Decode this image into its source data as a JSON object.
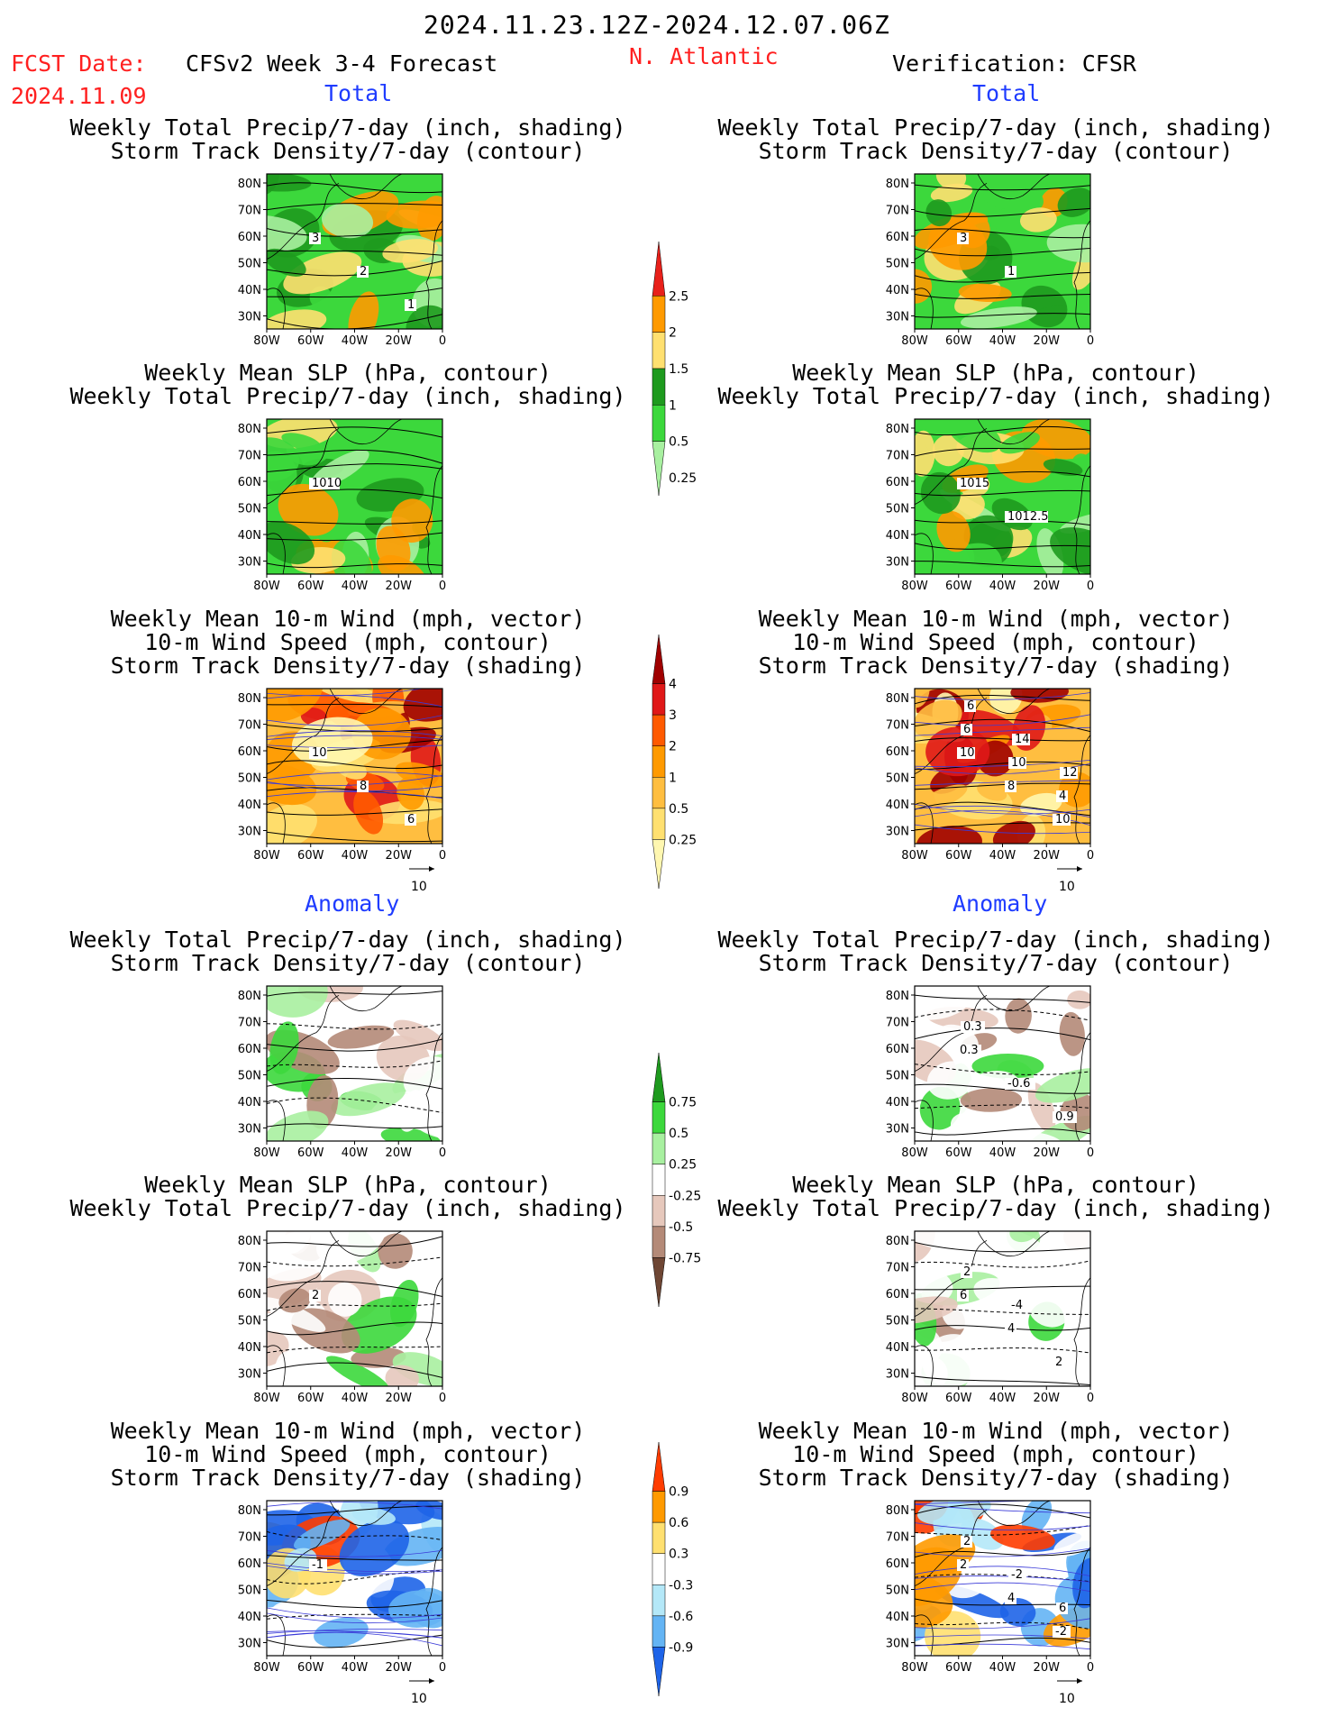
{
  "header": {
    "date_range": "2024.11.23.12Z-2024.12.07.06Z",
    "fcst_label": "FCST Date:",
    "fcst_date": "2024.11.09",
    "forecast_title": "CFSv2 Week 3-4 Forecast",
    "region": "N. Atlantic",
    "verification": "Verification: CFSR"
  },
  "sections": {
    "total": "Total",
    "anomaly": "Anomaly"
  },
  "titles": {
    "precip_shade": "Weekly Total Precip/7-day (inch, shading)",
    "storm_contour": "Storm Track Density/7-day (contour)",
    "slp_contour": "Weekly Mean SLP (hPa, contour)",
    "wind_vector": "Weekly Mean 10-m Wind (mph, vector)",
    "wind_speed": "10-m Wind Speed (mph, contour)",
    "storm_shade": "Storm Track Density/7-day (shading)"
  },
  "axes": {
    "lon_ticks": [
      "80W",
      "60W",
      "40W",
      "20W",
      "0"
    ],
    "lat_ticks": [
      "80N",
      "70N",
      "60N",
      "50N",
      "40N",
      "30N"
    ]
  },
  "vector_ref": "10",
  "colorbars": [
    {
      "id": "precip-total",
      "labels": [
        "2.5",
        "2",
        "1.5",
        "1",
        "0.5",
        "0.25"
      ],
      "colors": [
        "#e8201a",
        "#ff9a00",
        "#ffe070",
        "#1e9a1e",
        "#3cd83c",
        "#a8f0a0"
      ]
    },
    {
      "id": "storm-total",
      "labels": [
        "4",
        "3",
        "2",
        "1",
        "0.5",
        "0.25"
      ],
      "colors": [
        "#a00000",
        "#e01818",
        "#ff5a00",
        "#ff9a00",
        "#ffbe40",
        "#ffe070",
        "#fff7b0"
      ]
    },
    {
      "id": "precip-anom",
      "labels": [
        "0.75",
        "0.5",
        "0.25",
        "-0.25",
        "-0.5",
        "-0.75"
      ],
      "colors": [
        "#1e9a1e",
        "#3cd83c",
        "#a8f0a0",
        "#ffffff",
        "#e6c8bc",
        "#b48a78",
        "#6e4634"
      ]
    },
    {
      "id": "storm-anom",
      "labels": [
        "0.9",
        "0.6",
        "0.3",
        "-0.3",
        "-0.6",
        "-0.9"
      ],
      "colors": [
        "#ff3c00",
        "#ff9a00",
        "#ffe070",
        "#ffffff",
        "#b4e8f8",
        "#64b4f4",
        "#1e64e8"
      ]
    }
  ],
  "panels": [
    {
      "id": "fc-total-precip",
      "kind": "precip",
      "labels": [
        "3",
        "2",
        "1"
      ]
    },
    {
      "id": "fc-total-slp",
      "kind": "precip",
      "labels": [
        "1010"
      ]
    },
    {
      "id": "fc-total-wind",
      "kind": "storm",
      "labels": [
        "10",
        "8",
        "6"
      ]
    },
    {
      "id": "vf-total-precip",
      "kind": "precip",
      "labels": [
        "3",
        "1"
      ]
    },
    {
      "id": "vf-total-slp",
      "kind": "precip",
      "labels": [
        "1015",
        "1012.5"
      ]
    },
    {
      "id": "vf-total-wind",
      "kind": "storm",
      "labels": [
        "10",
        "8",
        "10",
        "6",
        "10",
        "4",
        "6",
        "14",
        "12"
      ]
    },
    {
      "id": "fc-anom-precip",
      "kind": "panom",
      "labels": []
    },
    {
      "id": "fc-anom-slp",
      "kind": "panom",
      "labels": [
        "2"
      ]
    },
    {
      "id": "fc-anom-wind",
      "kind": "sanom",
      "labels": [
        "-1"
      ]
    },
    {
      "id": "vf-anom-precip",
      "kind": "panom",
      "labels": [
        "0.3",
        "-0.6",
        "0.9",
        "0.3"
      ]
    },
    {
      "id": "vf-anom-slp",
      "kind": "panom",
      "labels": [
        "6",
        "4",
        "2",
        "2",
        "-4"
      ]
    },
    {
      "id": "vf-anom-wind",
      "kind": "sanom",
      "labels": [
        "2",
        "4",
        "-2",
        "2",
        "-2",
        "6"
      ]
    }
  ],
  "colors": {
    "accent_red": "#ff2020",
    "accent_blue": "#1f3cff"
  }
}
